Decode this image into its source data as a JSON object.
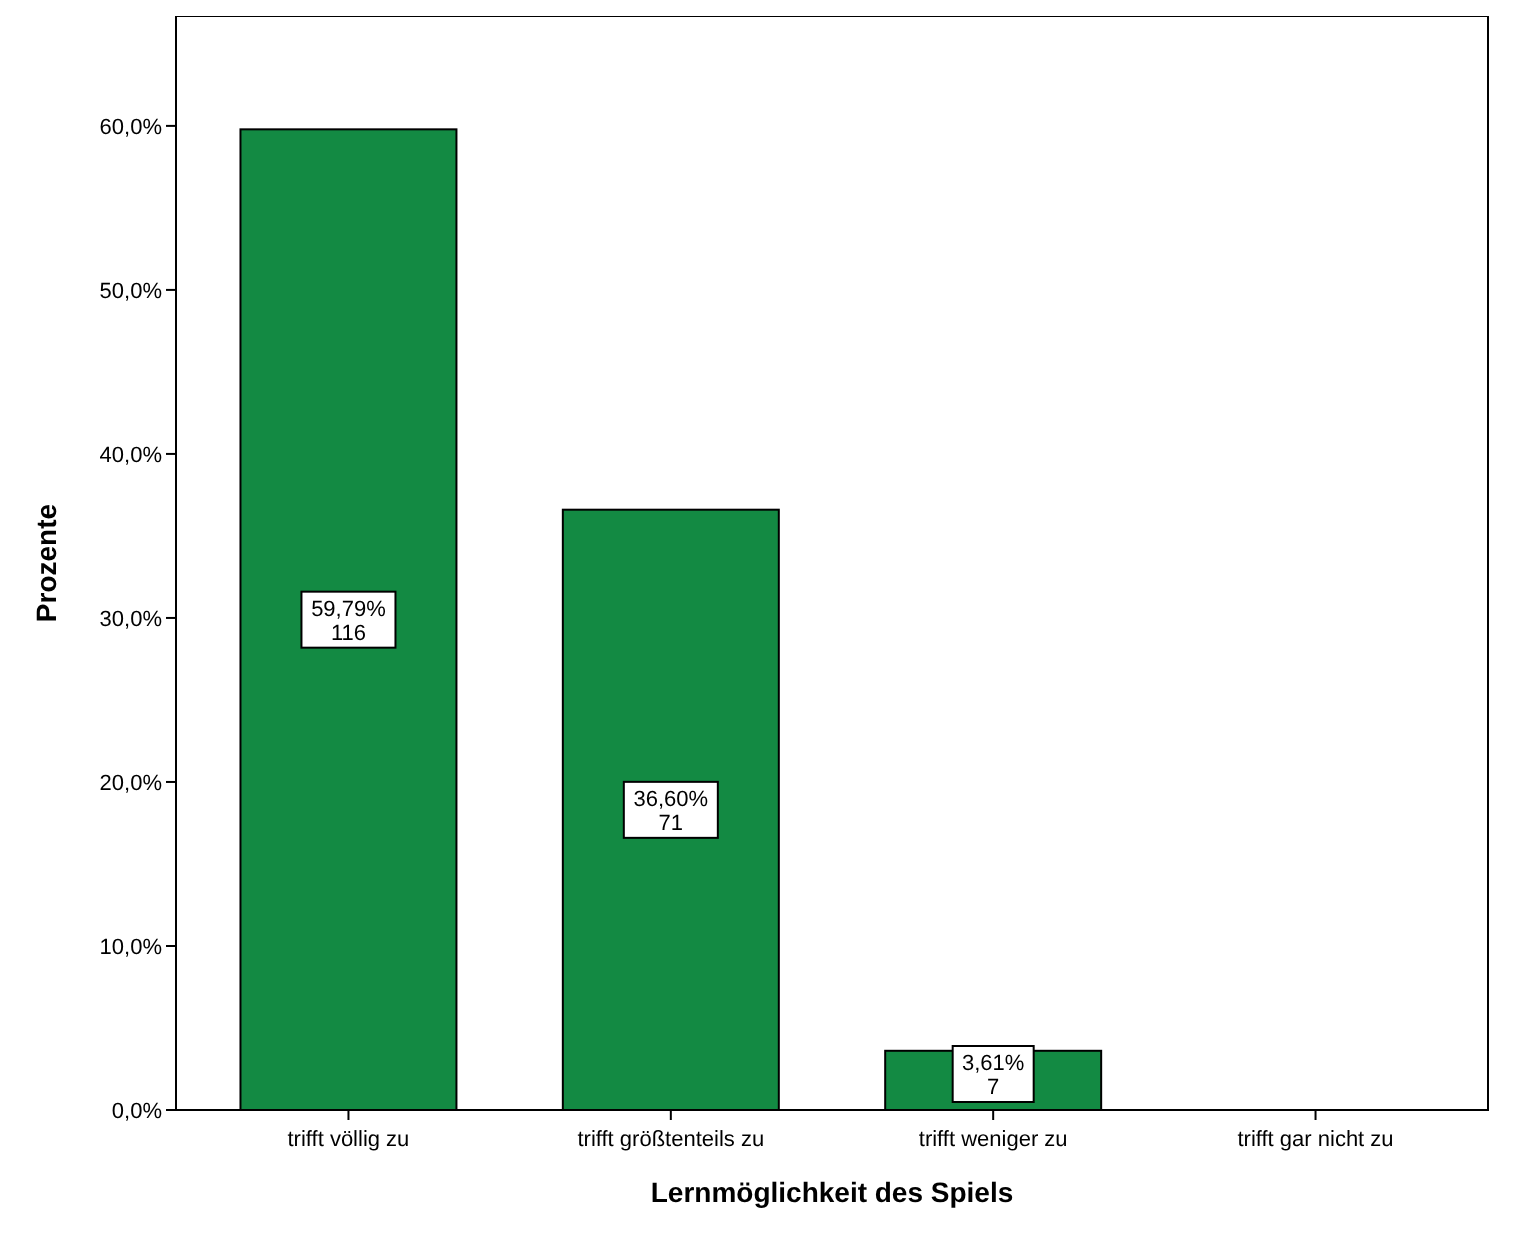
{
  "chart_data": {
    "type": "bar",
    "xlabel": "Lernmöglichkeit des Spiels",
    "ylabel": "Prozente",
    "categories": [
      "trifft völlig zu",
      "trifft größtenteils zu",
      "trifft weniger zu",
      "trifft gar nicht zu"
    ],
    "values": [
      59.79,
      36.6,
      3.61,
      0
    ],
    "value_labels": [
      "59,79%\n116",
      "36,60%\n71",
      "3,61%\n7",
      null
    ],
    "color": "#138a43",
    "ylim": [
      0,
      66.7
    ],
    "yticks": [
      {
        "value": 0,
        "label": "0,0%"
      },
      {
        "value": 10,
        "label": "10,0%"
      },
      {
        "value": 20,
        "label": "20,0%"
      },
      {
        "value": 30,
        "label": "30,0%"
      },
      {
        "value": 40,
        "label": "40,0%"
      },
      {
        "value": 50,
        "label": "50,0%"
      },
      {
        "value": 60,
        "label": "60,0%"
      }
    ],
    "grid": false
  }
}
